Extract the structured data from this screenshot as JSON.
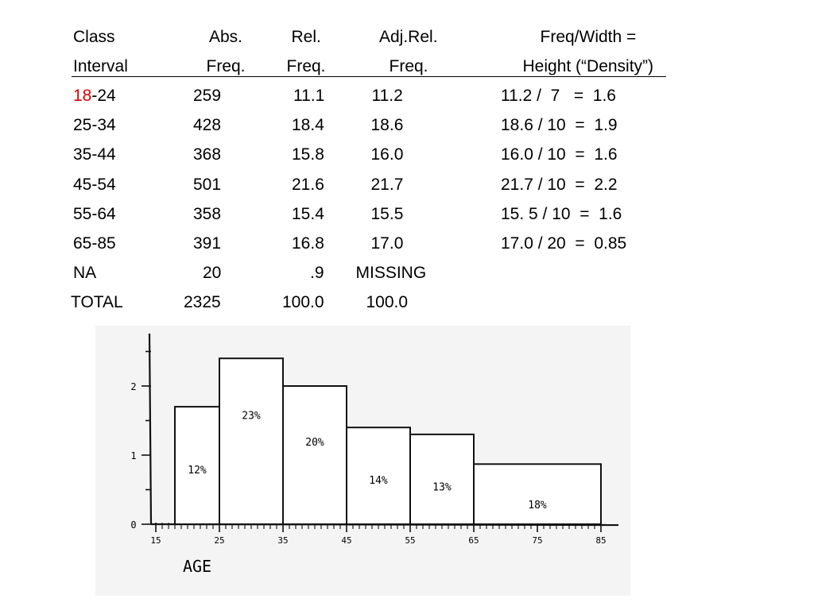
{
  "table": {
    "columns": [
      {
        "line1": "Class",
        "line2": "Interval"
      },
      {
        "line1": "Abs.",
        "line2": "Freq."
      },
      {
        "line1": "Rel.",
        "line2": "Freq."
      },
      {
        "line1": "Adj.Rel.",
        "line2": "Freq."
      },
      {
        "line1": "Freq/Width =",
        "line2": "Height (“Density”)"
      }
    ],
    "rows": [
      {
        "interval_start": "18",
        "interval_rest": "-24",
        "abs": "259",
        "rel": "11.1",
        "adj": "11.2",
        "calc": "11.2 /  7   =  1.6"
      },
      {
        "interval_start": "",
        "interval_rest": "25-34",
        "abs": "428",
        "rel": "18.4",
        "adj": "18.6",
        "calc": "18.6 / 10  =  1.9"
      },
      {
        "interval_start": "",
        "interval_rest": "35-44",
        "abs": "368",
        "rel": "15.8",
        "adj": "16.0",
        "calc": "16.0 / 10  =  1.6"
      },
      {
        "interval_start": "",
        "interval_rest": "45-54",
        "abs": "501",
        "rel": "21.6",
        "adj": "21.7",
        "calc": "21.7 / 10  =  2.2"
      },
      {
        "interval_start": "",
        "interval_rest": "55-64",
        "abs": "358",
        "rel": "15.4",
        "adj": "15.5",
        "calc": "15. 5 / 10  =  1.6"
      },
      {
        "interval_start": "",
        "interval_rest": "65-85",
        "abs": "391",
        "rel": "16.8",
        "adj": "17.0",
        "calc": "17.0 / 20  =  0.85"
      },
      {
        "interval_start": "",
        "interval_rest": "NA",
        "abs": "20",
        "rel": ".9",
        "adj": "MISSING",
        "calc": ""
      },
      {
        "interval_start": "",
        "interval_rest": "TOTAL",
        "abs": "2325",
        "rel": "100.0",
        "adj": "100.0",
        "calc": ""
      }
    ],
    "highlight_color": "#e00000"
  },
  "chart_data": {
    "type": "bar",
    "xlabel": "AGE",
    "ylabel": "",
    "xlim": [
      15,
      85
    ],
    "ylim": [
      0,
      2.5
    ],
    "x_ticks": [
      "15",
      "25",
      "35",
      "45",
      "55",
      "65",
      "75",
      "85"
    ],
    "y_ticks": [
      "0",
      "1",
      "2"
    ],
    "bars": [
      {
        "x0": 18,
        "x1": 25,
        "height": 1.7,
        "label": "12%"
      },
      {
        "x0": 25,
        "x1": 35,
        "height": 2.4,
        "label": "23%"
      },
      {
        "x0": 35,
        "x1": 45,
        "height": 2.0,
        "label": "20%"
      },
      {
        "x0": 45,
        "x1": 55,
        "height": 1.4,
        "label": "14%"
      },
      {
        "x0": 55,
        "x1": 65,
        "height": 1.3,
        "label": "13%"
      },
      {
        "x0": 65,
        "x1": 85,
        "height": 0.87,
        "label": "18%"
      }
    ]
  }
}
